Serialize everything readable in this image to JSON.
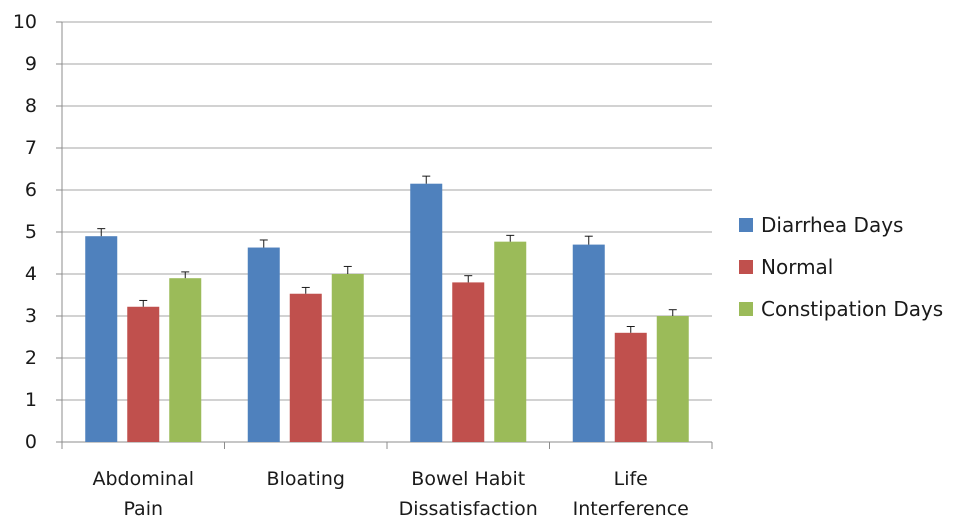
{
  "chart_data": {
    "type": "bar",
    "categories": [
      [
        "Abdominal",
        "Pain"
      ],
      [
        "Bloating"
      ],
      [
        "Bowel Habit",
        "Dissatisfaction"
      ],
      [
        "Life",
        "Interference"
      ]
    ],
    "series": [
      {
        "name": "Diarrhea Days",
        "color": "#4f81bd",
        "values": [
          4.9,
          4.63,
          6.15,
          4.7
        ],
        "errors": [
          0.18,
          0.18,
          0.18,
          0.2
        ]
      },
      {
        "name": "Normal",
        "color": "#c0504d",
        "values": [
          3.22,
          3.53,
          3.8,
          2.6
        ],
        "errors": [
          0.15,
          0.15,
          0.16,
          0.15
        ]
      },
      {
        "name": "Constipation Days",
        "color": "#9bbb59",
        "values": [
          3.9,
          4.0,
          4.77,
          3.0
        ],
        "errors": [
          0.15,
          0.18,
          0.15,
          0.15
        ]
      }
    ],
    "ylim": [
      0,
      10
    ],
    "yticks": [
      0,
      1,
      2,
      3,
      4,
      5,
      6,
      7,
      8,
      9,
      10
    ],
    "grid": true,
    "legend_position": "right",
    "title": "",
    "xlabel": "",
    "ylabel": ""
  }
}
